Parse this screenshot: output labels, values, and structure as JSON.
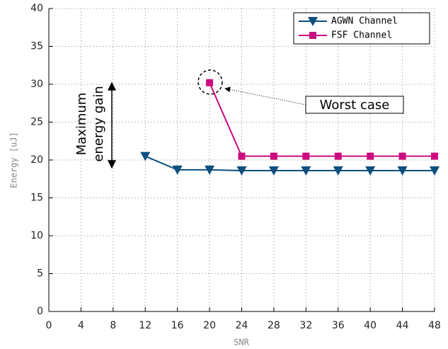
{
  "chart_data": {
    "type": "line",
    "xlabel": "SNR",
    "ylabel": "Energy [uJ]",
    "xlim": [
      0,
      48
    ],
    "xticks": [
      0,
      4,
      8,
      12,
      16,
      20,
      24,
      28,
      32,
      36,
      40,
      44,
      48
    ],
    "ylim": [
      0,
      40
    ],
    "yticks": [
      0,
      5,
      10,
      15,
      20,
      25,
      30,
      35,
      40
    ],
    "grid": true,
    "legend": "upper right",
    "series": [
      {
        "name": "AGWN Channel",
        "color": "#0b4f7e",
        "marker": "triangle-down",
        "x": [
          12,
          16,
          20,
          24,
          28,
          32,
          36,
          40,
          44,
          48
        ],
        "values": [
          20.5,
          18.7,
          18.7,
          18.6,
          18.6,
          18.6,
          18.6,
          18.6,
          18.6,
          18.6
        ]
      },
      {
        "name": "FSF Channel",
        "color": "#cc0a7f",
        "marker": "square",
        "x": [
          20,
          24,
          28,
          32,
          36,
          40,
          44,
          48
        ],
        "values": [
          30.2,
          20.5,
          20.5,
          20.5,
          20.5,
          20.5,
          20.5,
          20.5
        ]
      }
    ],
    "annotations": {
      "gain": [
        "Maximum",
        "energy gain"
      ],
      "worst": "Worst case"
    }
  }
}
